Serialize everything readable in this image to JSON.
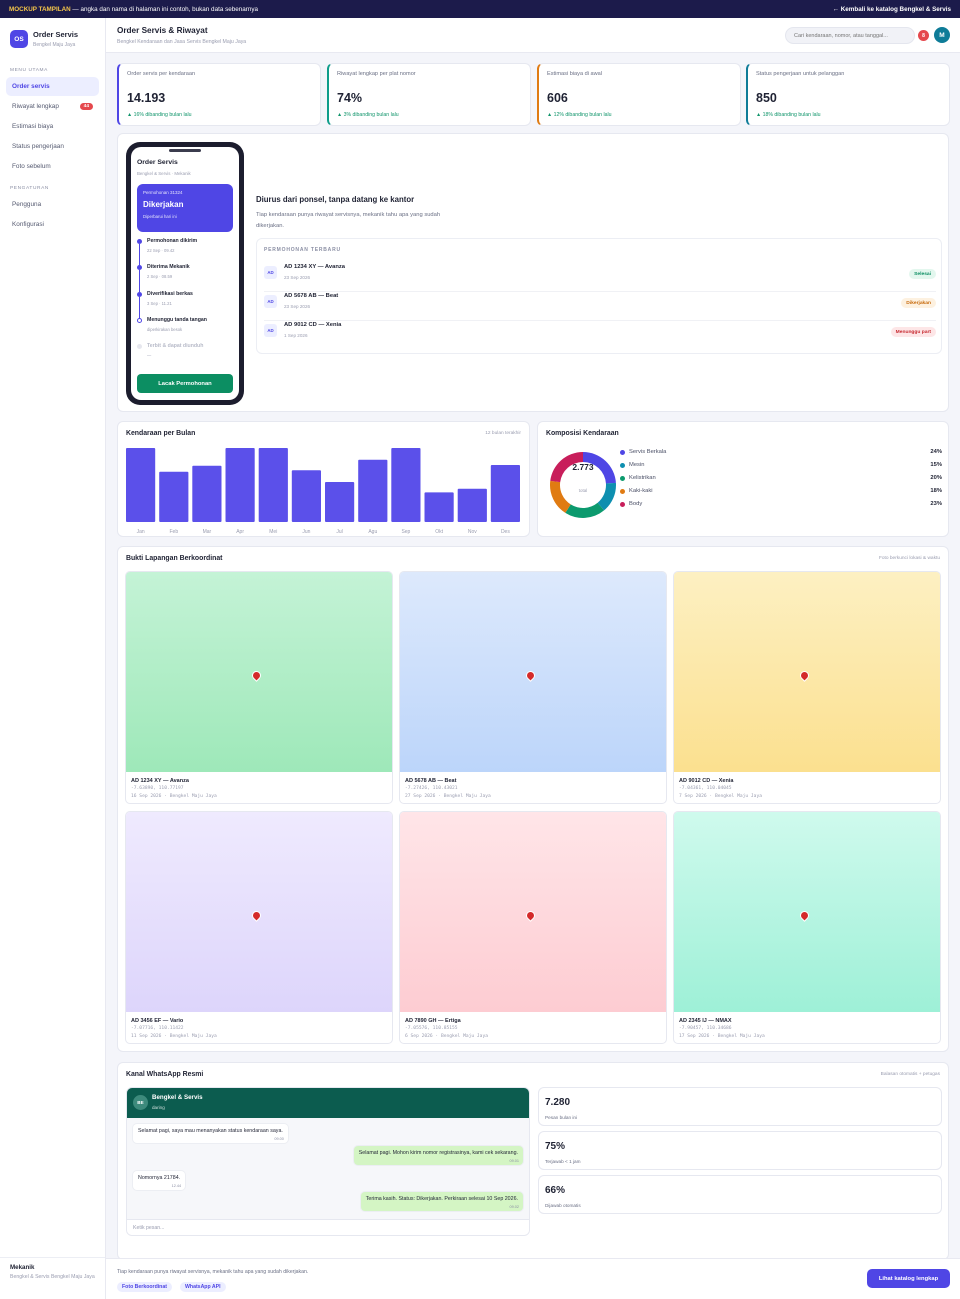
{
  "banner": {
    "tag": "MOCKUP TAMPILAN",
    "text": " — angka dan nama di halaman ini contoh, bukan data sebenarnya",
    "back_link": "← Kembali ke katalog Bengkel & Servis"
  },
  "sidebar": {
    "logo": "OS",
    "app_name": "Order Servis",
    "org": "Bengkel Maju Jaya",
    "section_main": "MENU UTAMA",
    "items": [
      {
        "label": "Order servis",
        "active": true
      },
      {
        "label": "Riwayat lengkap",
        "badge": "44"
      },
      {
        "label": "Estimasi biaya"
      },
      {
        "label": "Status pengerjaan"
      },
      {
        "label": "Foto sebelum"
      }
    ],
    "section_settings": "PENGATURAN",
    "settings_items": [
      {
        "label": "Pengguna"
      },
      {
        "label": "Konfigurasi"
      }
    ],
    "footer_role": "Mekanik",
    "footer_org": "Bengkel & Servis Bengkel Maju Jaya"
  },
  "header": {
    "title": "Order Servis & Riwayat",
    "subtitle": "Bengkel Kendaraan dan Jasa Servis Bengkel Maju Jaya",
    "search_placeholder": "Cari kendaraan, nomor, atau tanggal...",
    "notif_count": "8",
    "avatar": "M"
  },
  "kpis": [
    {
      "label": "Order servis per kendaraan",
      "value": "14.193",
      "delta": "▲ 16% dibanding bulan lalu",
      "accent": "#4f46e5"
    },
    {
      "label": "Riwayat lengkap per plat nomor",
      "value": "74%",
      "delta": "▲ 3% dibanding bulan lalu",
      "accent": "#0f9d8a"
    },
    {
      "label": "Estimasi biaya di awal",
      "value": "606",
      "delta": "▲ 12% dibanding bulan lalu",
      "accent": "#e07b12"
    },
    {
      "label": "Status pengerjaan untuk pelanggan",
      "value": "850",
      "delta": "▲ 18% dibanding bulan lalu",
      "accent": "#0e7c98"
    }
  ],
  "phone": {
    "title": "Order Servis",
    "subtitle": "Bengkel & Servis · Mekanik",
    "card_id": "Permohonan 31324",
    "card_status": "Dikerjakan",
    "card_note": "Diperbarui hari ini",
    "timeline": [
      {
        "title": "Permohonan dikirim",
        "time": "22 Sep · 09.42",
        "state": "done"
      },
      {
        "title": "Diterima Mekanik",
        "time": "2 Sep · 08.59",
        "state": "done"
      },
      {
        "title": "Diverifikasi berkas",
        "time": "3 Sep · 11.21",
        "state": "done"
      },
      {
        "title": "Menunggu tanda tangan",
        "time": "diperkirakan besok",
        "state": "current"
      },
      {
        "title": "Terbit & dapat diunduh",
        "time": "—",
        "state": "pending"
      }
    ],
    "button": "Lacak Permohonan"
  },
  "hero": {
    "title": "Diurus dari ponsel, tanpa datang ke kantor",
    "desc": "Tiap kendaraan punya riwayat servisnya, mekanik tahu apa yang sudah dikerjakan.",
    "recent_header": "PERMOHONAN TERBARU",
    "recent": [
      {
        "icon": "AD",
        "name": "AD 1234 XY — Avanza",
        "date": "23 Sep 2026",
        "status": "Selesai",
        "status_color": "#0c8e62",
        "status_bg": "#e3f7ee"
      },
      {
        "icon": "AD",
        "name": "AD 5678 AB — Beat",
        "date": "23 Sep 2026",
        "status": "Dikerjakan",
        "status_color": "#c76a0c",
        "status_bg": "#fdf1e0"
      },
      {
        "icon": "AD",
        "name": "AD 9012 CD — Xenia",
        "date": "1 Sep 2026",
        "status": "Menunggu part",
        "status_color": "#c72b32",
        "status_bg": "#fde6e7"
      }
    ]
  },
  "bar_panel": {
    "title": "Kendaraan per Bulan",
    "note": "12 bulan terakhir"
  },
  "donut_panel": {
    "title": "Komposisi Kendaraan",
    "total": "2.773",
    "total_label": "total"
  },
  "chart_data": [
    {
      "type": "bar",
      "categories": [
        "Jan",
        "Feb",
        "Mar",
        "Apr",
        "Mei",
        "Jun",
        "Jul",
        "Agu",
        "Sep",
        "Okt",
        "Nov",
        "Des"
      ],
      "values": [
        100,
        68,
        76,
        100,
        100,
        70,
        54,
        84,
        100,
        40,
        45,
        77
      ],
      "color": "#5b50ea",
      "ylim": [
        0,
        100
      ]
    },
    {
      "type": "pie",
      "labels": [
        "Servis Berkala",
        "Mesin",
        "Kelistrikan",
        "Kaki-kaki",
        "Body"
      ],
      "values": [
        24,
        15,
        20,
        18,
        23
      ],
      "value_labels": [
        "24%",
        "15%",
        "20%",
        "18%",
        "23%"
      ],
      "colors": [
        "#4f46e5",
        "#0e8fb0",
        "#0c9a6e",
        "#e07b12",
        "#c81e5b"
      ]
    }
  ],
  "field": {
    "title": "Bukti Lapangan Berkoordinat",
    "note": "Foto berkunci lokasi & waktu",
    "photos": [
      {
        "name": "AD 1234 XY — Avanza",
        "coords": "-7.63890, 110.77197",
        "meta": "16 Sep 2026 · Bengkel Maju Jaya",
        "g1": "#c4f3d6",
        "g2": "#9ee8b9"
      },
      {
        "name": "AD 5678 AB — Beat",
        "coords": "-7.27426, 110.43021",
        "meta": "27 Sep 2026 · Bengkel Maju Jaya",
        "g1": "#dde9fc",
        "g2": "#bcd5fa"
      },
      {
        "name": "AD 9012 CD — Xenia",
        "coords": "-7.04361, 110.04045",
        "meta": "7 Sep 2026 · Bengkel Maju Jaya",
        "g1": "#fdf0c2",
        "g2": "#fbe08f"
      },
      {
        "name": "AD 3456 EF — Vario",
        "coords": "-7.07716, 110.11422",
        "meta": "11 Sep 2026 · Bengkel Maju Jaya",
        "g1": "#efeafe",
        "g2": "#ddd5fb"
      },
      {
        "name": "AD 7890 GH — Ertiga",
        "coords": "-7.05576, 110.85155",
        "meta": "6 Sep 2026 · Bengkel Maju Jaya",
        "g1": "#ffe5e8",
        "g2": "#fdccd2"
      },
      {
        "name": "AD 2345 IJ — NMAX",
        "coords": "-7.90457, 110.34686",
        "meta": "17 Sep 2026 · Bengkel Maju Jaya",
        "g1": "#cffaed",
        "g2": "#9ef0d7"
      }
    ]
  },
  "whatsapp": {
    "title": "Kanal WhatsApp Resmi",
    "note": "Balasan otomatis + petugas",
    "avatar": "BE",
    "contact": "Bengkel & Servis",
    "contact_status": "daring",
    "messages": [
      {
        "text": "Selamat pagi, saya mau menanyakan status kendaraan saya.",
        "time": "09.00",
        "dir": "in"
      },
      {
        "text": "Selamat pagi. Mohon kirim nomor registrasinya, kami cek sekarang.",
        "time": "09.01",
        "dir": "out"
      },
      {
        "text": "Nomornya 21784.",
        "time": "12.44",
        "dir": "in"
      },
      {
        "text": "Terima kasih. Status: Dikerjakan. Perkiraan selesai 10 Sep 2026.",
        "time": "09.02",
        "dir": "out"
      }
    ],
    "input_placeholder": "Ketik pesan...",
    "stats": [
      {
        "value": "7.280",
        "label": "Pesan bulan ini"
      },
      {
        "value": "75%",
        "label": "Terjawab < 1 jam"
      },
      {
        "value": "66%",
        "label": "Dijawab otomatis"
      }
    ]
  },
  "footer": {
    "text": "Tiap kendaraan punya riwayat servisnya, mekanik tahu apa yang sudah dikerjakan.",
    "tags": [
      "Foto Berkoordinat",
      "WhatsApp API"
    ],
    "button": "Lihat katalog lengkap"
  }
}
